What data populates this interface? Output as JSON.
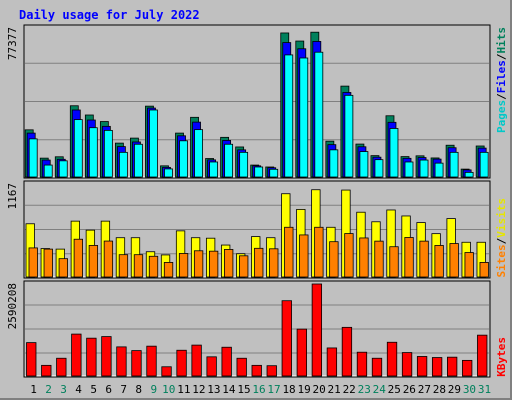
{
  "chart_data": {
    "type": "bar",
    "title": "Daily usage for July 2022",
    "categories": [
      "1",
      "2",
      "3",
      "4",
      "5",
      "6",
      "7",
      "8",
      "9",
      "10",
      "11",
      "12",
      "13",
      "14",
      "15",
      "16",
      "17",
      "18",
      "19",
      "20",
      "21",
      "22",
      "23",
      "24",
      "25",
      "26",
      "27",
      "28",
      "29",
      "30",
      "31"
    ],
    "weekend_days": [
      "2",
      "3",
      "9",
      "10",
      "16",
      "17",
      "23",
      "24",
      "30",
      "31"
    ],
    "panels": [
      {
        "id": "top",
        "ymax_label": "77377",
        "ylim": [
          0,
          77377
        ],
        "series": [
          {
            "name": "Hits",
            "color": "#00805c",
            "values": [
              24500,
              9800,
              10500,
              37000,
              32200,
              28800,
              17600,
              20200,
              36800,
              5800,
              22800,
              31000,
              9600,
              20600,
              15600,
              6200,
              5200,
              74800,
              70600,
              75200,
              18600,
              47200,
              17100,
              11100,
              31800,
              10600,
              11000,
              9900,
              16500,
              4100,
              16100
            ]
          },
          {
            "name": "Files",
            "color": "#0000ff",
            "values": [
              22800,
              8800,
              9200,
              34800,
              29600,
              26300,
              15800,
              18200,
              35800,
              5000,
              21400,
              28500,
              8900,
              19000,
              14100,
              5800,
              4800,
              69800,
              66600,
              70400,
              16800,
              43900,
              15700,
              10300,
              28400,
              9700,
              10100,
              9300,
              15200,
              3700,
              15000
            ]
          },
          {
            "name": "Pages",
            "color": "#00ffff",
            "values": [
              19800,
              6200,
              8400,
              29800,
              25600,
              24200,
              12800,
              17000,
              34800,
              4200,
              18800,
              24600,
              7800,
              17000,
              12800,
              5200,
              4000,
              63400,
              61800,
              64800,
              14100,
              42400,
              13200,
              9000,
              25200,
              7800,
              8800,
              7200,
              12800,
              2400,
              12800
            ]
          }
        ]
      },
      {
        "id": "middle",
        "ymax_label": "1167",
        "ylim": [
          0,
          1167
        ],
        "series": [
          {
            "name": "Visits",
            "color": "#ffff00",
            "values": [
              668,
              357,
              350,
              701,
              588,
              701,
              493,
              493,
              317,
              277,
              579,
              493,
              487,
              401,
              292,
              507,
              493,
              1045,
              848,
              1095,
              624,
              1091,
              813,
              693,
              841,
              766,
              683,
              544,
              733,
              436,
              436
            ]
          },
          {
            "name": "Sites",
            "color": "#ff8000",
            "values": [
              365,
              350,
              230,
              474,
              396,
              451,
              280,
              280,
              260,
              183,
              295,
              329,
              324,
              346,
              266,
              360,
              354,
              624,
              528,
              624,
              443,
              545,
              490,
              450,
              380,
              496,
              450,
              396,
              420,
              307,
              183
            ]
          }
        ]
      },
      {
        "id": "bottom",
        "ymax_label": "2590208",
        "ylim": [
          0,
          2590208
        ],
        "series": [
          {
            "name": "KBytes",
            "color": "#ff0000",
            "values": [
              940000,
              300000,
              500000,
              1180000,
              1065000,
              1110000,
              820000,
              715000,
              840000,
              260000,
              725000,
              870000,
              540000,
              810000,
              500000,
              300000,
              290000,
              2120000,
              1320000,
              2590208,
              790000,
              1370000,
              670000,
              500000,
              950000,
              660000,
              550000,
              520000,
              530000,
              440000,
              1150000
            ]
          }
        ]
      }
    ],
    "legend": {
      "top": [
        {
          "text": "Pages",
          "color": "#00c8c8"
        },
        {
          "text": "Files",
          "color": "#0000ff"
        },
        {
          "text": "Hits",
          "color": "#00805c"
        }
      ],
      "middle": [
        {
          "text": "Sites",
          "color": "#ff8000"
        },
        {
          "text": "Visits",
          "color": "#e6e600"
        }
      ],
      "bottom": [
        {
          "text": "KBytes",
          "color": "#ff0000"
        }
      ]
    },
    "separator": "/",
    "grid": true,
    "colors": {
      "background": "#c0c0c0",
      "title": "#0000ff",
      "weekday_label": "#000000",
      "weekend_label": "#00805c",
      "gridline": "#808080"
    }
  }
}
